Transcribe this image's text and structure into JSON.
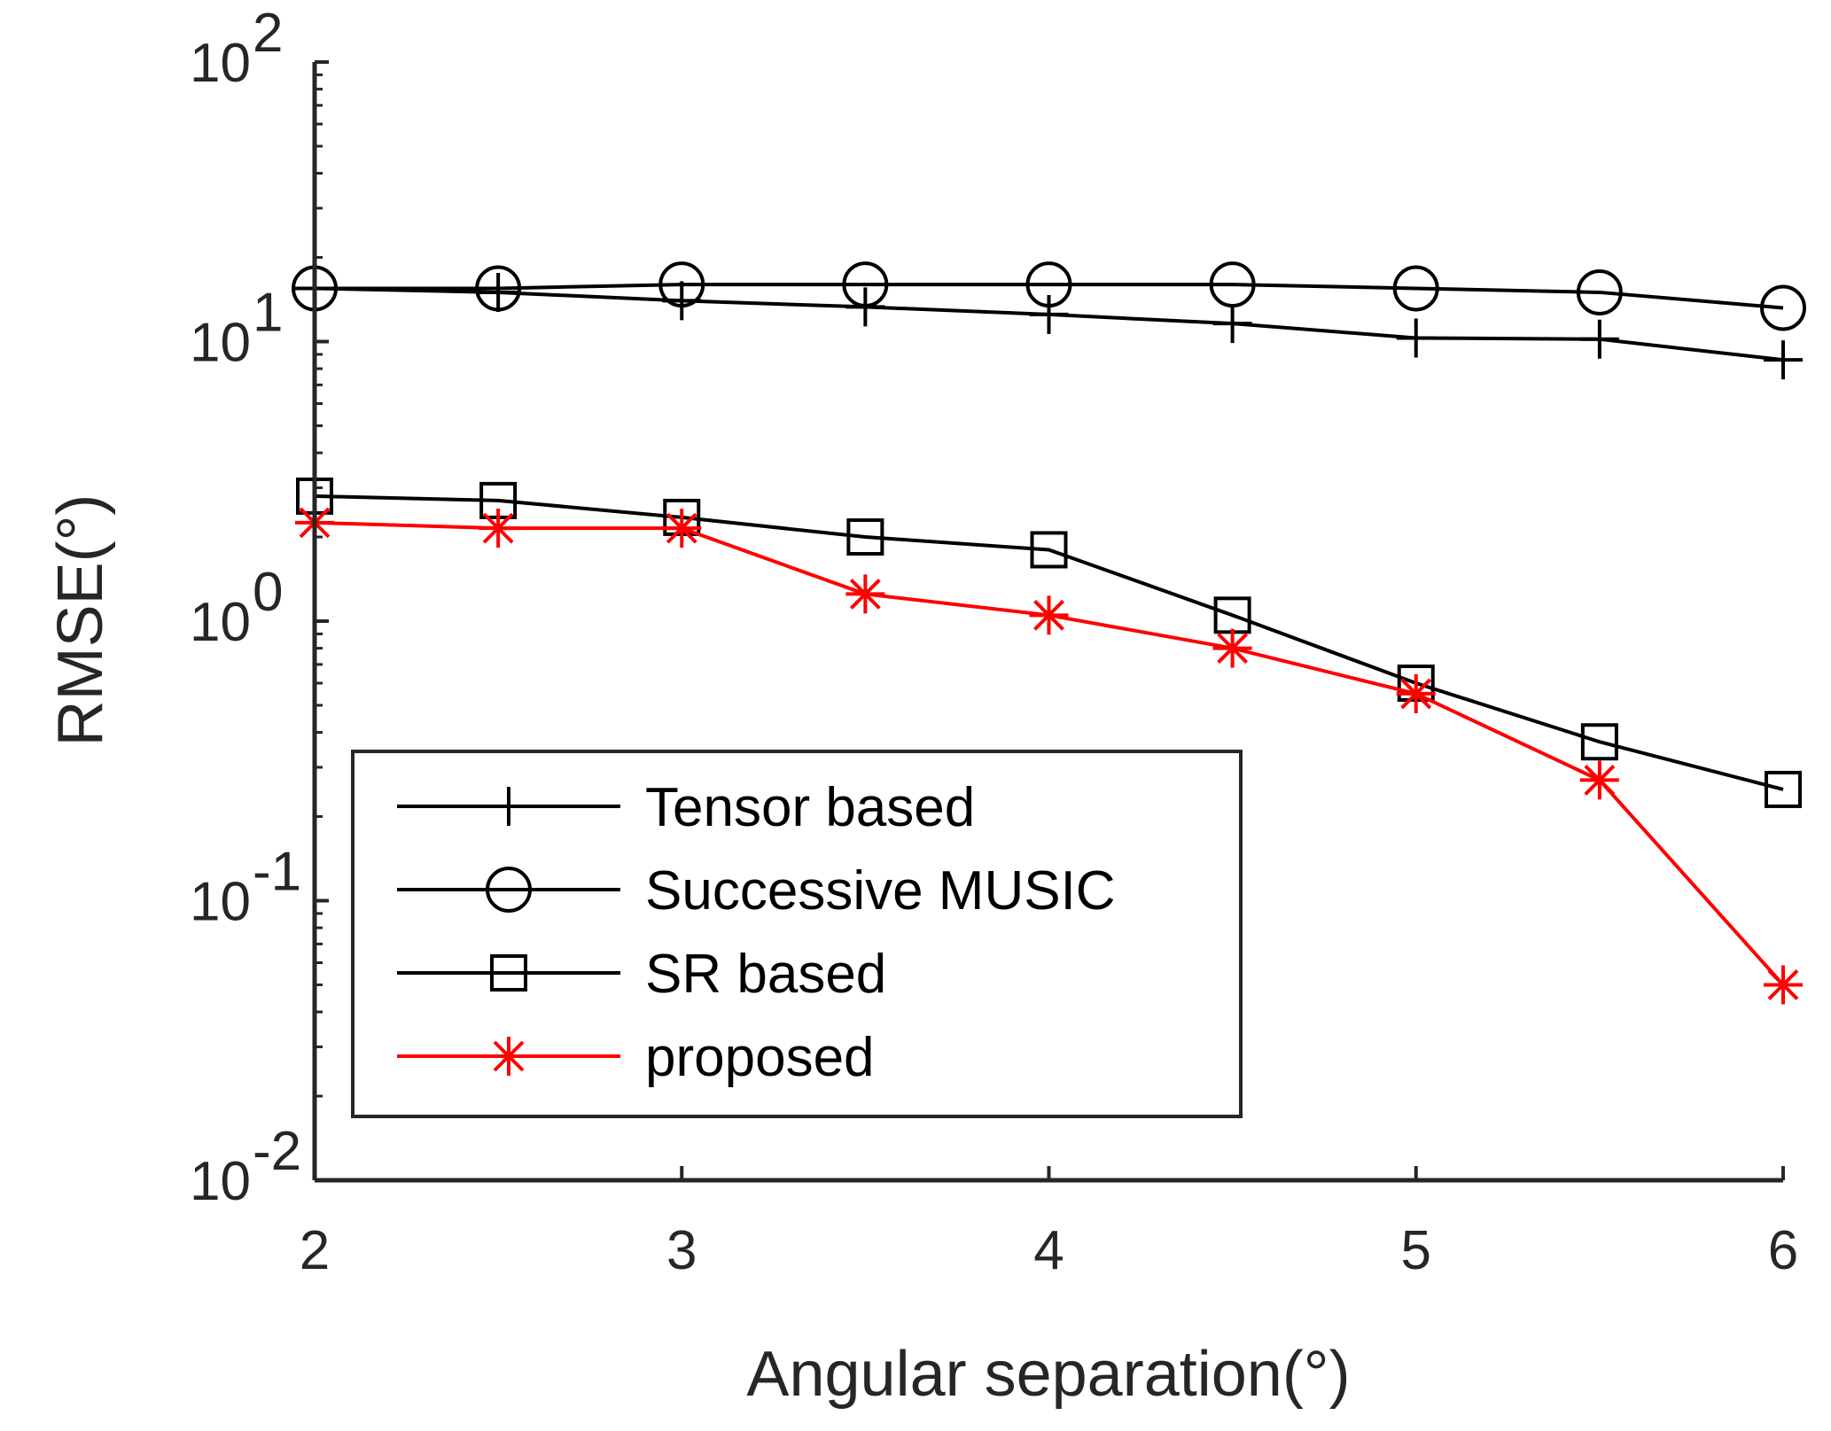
{
  "chart_data": {
    "type": "line",
    "title": "",
    "xlabel": "Angular separation(°)",
    "ylabel": "RMSE(°)",
    "xlim": [
      2,
      6
    ],
    "ylim": [
      0.01,
      100
    ],
    "yscale": "log",
    "x_ticks": [
      2,
      3,
      4,
      5,
      6
    ],
    "y_ticks": [
      {
        "base": "10",
        "exp": "-2",
        "value": 0.01
      },
      {
        "base": "10",
        "exp": "-1",
        "value": 0.1
      },
      {
        "base": "10",
        "exp": "0",
        "value": 1
      },
      {
        "base": "10",
        "exp": "1",
        "value": 10
      },
      {
        "base": "10",
        "exp": "2",
        "value": 100
      }
    ],
    "grid": false,
    "legend_position": "bottom-left",
    "x": [
      2,
      2.5,
      3,
      3.5,
      4,
      4.5,
      5,
      5.5,
      6
    ],
    "series": [
      {
        "name": "Tensor based",
        "marker": "plus",
        "color": "#000000",
        "values": [
          15.5,
          15.0,
          14.0,
          13.3,
          12.5,
          11.6,
          10.3,
          10.2,
          8.6
        ]
      },
      {
        "name": "Successive MUSIC",
        "marker": "circle",
        "color": "#000000",
        "values": [
          15.5,
          15.5,
          16.0,
          16.0,
          16.0,
          16.0,
          15.5,
          15.0,
          13.2
        ]
      },
      {
        "name": "SR based",
        "marker": "square",
        "color": "#000000",
        "values": [
          2.8,
          2.7,
          2.35,
          2.0,
          1.8,
          1.05,
          0.6,
          0.37,
          0.25
        ]
      },
      {
        "name": "proposed",
        "marker": "asterisk",
        "color": "#ff0000",
        "values": [
          2.25,
          2.15,
          2.15,
          1.25,
          1.05,
          0.8,
          0.55,
          0.27,
          0.05
        ]
      }
    ]
  }
}
